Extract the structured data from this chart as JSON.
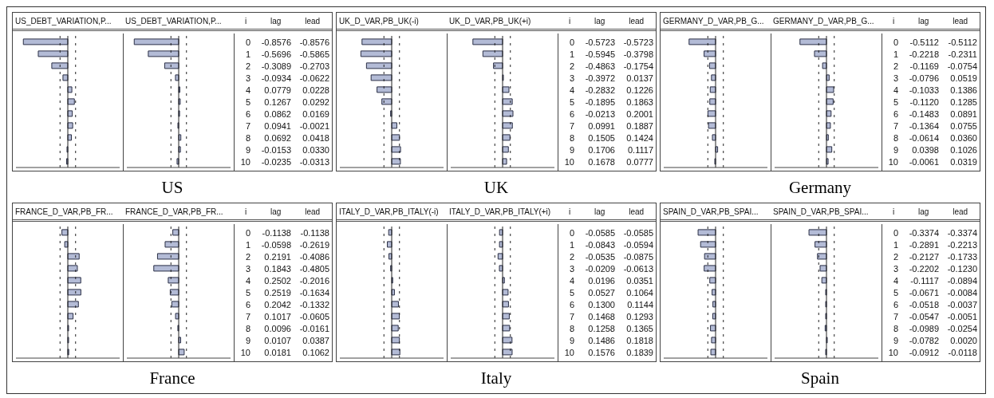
{
  "chart_data": [
    {
      "type": "bar",
      "orientation": "horizontal",
      "title": "US_DEBT_VARIATION,P...",
      "categories": [
        "0",
        "1",
        "2",
        "3",
        "4",
        "5",
        "6",
        "7",
        "8",
        "9",
        "10"
      ],
      "color": "#b3bbd6",
      "values": [
        -0.8576,
        -0.5696,
        -0.3089,
        -0.0934,
        0.0779,
        0.1267,
        0.0862,
        0.0941,
        0.0692,
        -0.0153,
        -0.0235
      ],
      "value_labels": [
        "-0.8576",
        "-0.5696",
        "-0.3089",
        "-0.0934",
        "0.0779",
        "0.1267",
        "0.0862",
        "0.0941",
        "0.0692",
        "-0.0153",
        "-0.0235"
      ],
      "annotations": [
        "lag"
      ],
      "xlim": [
        -1,
        1
      ],
      "ref_lines": [
        {
          "axis": "x",
          "value": -0.15,
          "line_style": "dashed"
        },
        {
          "axis": "x",
          "value": 0.15,
          "line_style": "dashed"
        },
        {
          "axis": "x",
          "value": 0,
          "line_style": "solid"
        }
      ],
      "tick_labels": false
    },
    {
      "type": "bar",
      "orientation": "horizontal",
      "title": "US_DEBT_VARIATION,P...",
      "categories": [
        "0",
        "1",
        "2",
        "3",
        "4",
        "5",
        "6",
        "7",
        "8",
        "9",
        "10"
      ],
      "color": "#b3bbd6",
      "values": [
        -0.8576,
        -0.5865,
        -0.2703,
        -0.0622,
        0.0228,
        0.0292,
        0.0169,
        -0.0021,
        0.0418,
        0.033,
        -0.0313
      ],
      "value_labels": [
        "-0.8576",
        "-0.5865",
        "-0.2703",
        "-0.0622",
        "0.0228",
        "0.0292",
        "0.0169",
        "-0.0021",
        "0.0418",
        "0.0330",
        "-0.0313"
      ],
      "annotations": [
        "i",
        "lead",
        "US"
      ],
      "xlim": [
        -1,
        1
      ],
      "ref_lines": [
        {
          "axis": "x",
          "value": -0.15,
          "line_style": "dashed"
        },
        {
          "axis": "x",
          "value": 0.15,
          "line_style": "dashed"
        },
        {
          "axis": "x",
          "value": 0,
          "line_style": "solid"
        }
      ],
      "tick_labels": false
    },
    {
      "type": "bar",
      "orientation": "horizontal",
      "title": "UK_D_VAR,PB_UK(-i)",
      "categories": [
        "0",
        "1",
        "2",
        "3",
        "4",
        "5",
        "6",
        "7",
        "8",
        "9",
        "10"
      ],
      "color": "#b3bbd6",
      "values": [
        -0.5723,
        -0.5945,
        -0.4863,
        -0.3972,
        -0.2832,
        -0.1895,
        -0.0213,
        0.0991,
        0.1505,
        0.1706,
        0.1678
      ],
      "value_labels": [
        "-0.5723",
        "-0.5945",
        "-0.4863",
        "-0.3972",
        "-0.2832",
        "-0.1895",
        "-0.0213",
        "0.0991",
        "0.1505",
        "0.1706",
        "0.1678"
      ],
      "annotations": [
        "lag"
      ],
      "xlim": [
        -1,
        1
      ],
      "ref_lines": [
        {
          "axis": "x",
          "value": -0.15,
          "line_style": "dashed"
        },
        {
          "axis": "x",
          "value": 0.15,
          "line_style": "dashed"
        },
        {
          "axis": "x",
          "value": 0,
          "line_style": "solid"
        }
      ],
      "tick_labels": false
    },
    {
      "type": "bar",
      "orientation": "horizontal",
      "title": "UK_D_VAR,PB_UK(+i)",
      "categories": [
        "0",
        "1",
        "2",
        "3",
        "4",
        "5",
        "6",
        "7",
        "8",
        "9",
        "10"
      ],
      "color": "#b3bbd6",
      "values": [
        -0.5723,
        -0.3798,
        -0.1754,
        0.0137,
        0.1226,
        0.1863,
        0.2001,
        0.1887,
        0.1424,
        0.1117,
        0.0777
      ],
      "value_labels": [
        "-0.5723",
        "-0.3798",
        "-0.1754",
        "0.0137",
        "0.1226",
        "0.1863",
        "0.2001",
        "0.1887",
        "0.1424",
        "0.1117",
        "0.0777"
      ],
      "annotations": [
        "i",
        "lead",
        "UK"
      ],
      "xlim": [
        -1,
        1
      ],
      "ref_lines": [
        {
          "axis": "x",
          "value": -0.15,
          "line_style": "dashed"
        },
        {
          "axis": "x",
          "value": 0.15,
          "line_style": "dashed"
        },
        {
          "axis": "x",
          "value": 0,
          "line_style": "solid"
        }
      ],
      "tick_labels": false
    },
    {
      "type": "bar",
      "orientation": "horizontal",
      "title": "GERMANY_D_VAR,PB_G...",
      "categories": [
        "0",
        "1",
        "2",
        "3",
        "4",
        "5",
        "6",
        "7",
        "8",
        "9",
        "10"
      ],
      "color": "#b3bbd6",
      "values": [
        -0.5112,
        -0.2218,
        -0.1169,
        -0.0796,
        -0.1033,
        -0.112,
        -0.1483,
        -0.1364,
        -0.0614,
        0.0398,
        -0.0061
      ],
      "value_labels": [
        "-0.5112",
        "-0.2218",
        "-0.1169",
        "-0.0796",
        "-0.1033",
        "-0.1120",
        "-0.1483",
        "-0.1364",
        "-0.0614",
        "0.0398",
        "-0.0061"
      ],
      "annotations": [
        "lag"
      ],
      "xlim": [
        -1,
        1
      ],
      "ref_lines": [
        {
          "axis": "x",
          "value": -0.15,
          "line_style": "dashed"
        },
        {
          "axis": "x",
          "value": 0.15,
          "line_style": "dashed"
        },
        {
          "axis": "x",
          "value": 0,
          "line_style": "solid"
        }
      ],
      "tick_labels": false
    },
    {
      "type": "bar",
      "orientation": "horizontal",
      "title": "GERMANY_D_VAR,PB_G...",
      "categories": [
        "0",
        "1",
        "2",
        "3",
        "4",
        "5",
        "6",
        "7",
        "8",
        "9",
        "10"
      ],
      "color": "#b3bbd6",
      "values": [
        -0.5112,
        -0.2311,
        -0.0754,
        0.0519,
        0.1386,
        0.1285,
        0.0891,
        0.0755,
        0.036,
        0.1026,
        0.0319
      ],
      "value_labels": [
        "-0.5112",
        "-0.2311",
        "-0.0754",
        "0.0519",
        "0.1386",
        "0.1285",
        "0.0891",
        "0.0755",
        "0.0360",
        "0.1026",
        "0.0319"
      ],
      "annotations": [
        "i",
        "lead",
        "Germany"
      ],
      "xlim": [
        -1,
        1
      ],
      "ref_lines": [
        {
          "axis": "x",
          "value": -0.15,
          "line_style": "dashed"
        },
        {
          "axis": "x",
          "value": 0.15,
          "line_style": "dashed"
        },
        {
          "axis": "x",
          "value": 0,
          "line_style": "solid"
        }
      ],
      "tick_labels": false
    },
    {
      "type": "bar",
      "orientation": "horizontal",
      "title": "FRANCE_D_VAR,PB_FR...",
      "categories": [
        "0",
        "1",
        "2",
        "3",
        "4",
        "5",
        "6",
        "7",
        "8",
        "9",
        "10"
      ],
      "color": "#b3bbd6",
      "values": [
        -0.1138,
        -0.0598,
        0.2191,
        0.1843,
        0.2502,
        0.2519,
        0.2042,
        0.1017,
        0.0096,
        0.0107,
        0.0181
      ],
      "value_labels": [
        "-0.1138",
        "-0.0598",
        "0.2191",
        "0.1843",
        "0.2502",
        "0.2519",
        "0.2042",
        "0.1017",
        "0.0096",
        "0.0107",
        "0.0181"
      ],
      "annotations": [
        "lag"
      ],
      "xlim": [
        -1,
        1
      ],
      "ref_lines": [
        {
          "axis": "x",
          "value": -0.15,
          "line_style": "dashed"
        },
        {
          "axis": "x",
          "value": 0.15,
          "line_style": "dashed"
        },
        {
          "axis": "x",
          "value": 0,
          "line_style": "solid"
        }
      ],
      "tick_labels": false
    },
    {
      "type": "bar",
      "orientation": "horizontal",
      "title": "FRANCE_D_VAR,PB_FR...",
      "categories": [
        "0",
        "1",
        "2",
        "3",
        "4",
        "5",
        "6",
        "7",
        "8",
        "9",
        "10"
      ],
      "color": "#b3bbd6",
      "values": [
        -0.1138,
        -0.2619,
        -0.4086,
        -0.4805,
        -0.2016,
        -0.1634,
        -0.1332,
        -0.0605,
        -0.0161,
        0.0387,
        0.1062
      ],
      "value_labels": [
        "-0.1138",
        "-0.2619",
        "-0.4086",
        "-0.4805",
        "-0.2016",
        "-0.1634",
        "-0.1332",
        "-0.0605",
        "-0.0161",
        "0.0387",
        "0.1062"
      ],
      "annotations": [
        "i",
        "lead",
        "France"
      ],
      "xlim": [
        -1,
        1
      ],
      "ref_lines": [
        {
          "axis": "x",
          "value": -0.15,
          "line_style": "dashed"
        },
        {
          "axis": "x",
          "value": 0.15,
          "line_style": "dashed"
        },
        {
          "axis": "x",
          "value": 0,
          "line_style": "solid"
        }
      ],
      "tick_labels": false
    },
    {
      "type": "bar",
      "orientation": "horizontal",
      "title": "ITALY_D_VAR,PB_ITALY(-i)",
      "categories": [
        "0",
        "1",
        "2",
        "3",
        "4",
        "5",
        "6",
        "7",
        "8",
        "9",
        "10"
      ],
      "color": "#b3bbd6",
      "values": [
        -0.0585,
        -0.0843,
        -0.0535,
        -0.0209,
        0.0196,
        0.0527,
        0.13,
        0.1468,
        0.1258,
        0.1486,
        0.1576
      ],
      "value_labels": [
        "-0.0585",
        "-0.0843",
        "-0.0535",
        "-0.0209",
        "0.0196",
        "0.0527",
        "0.1300",
        "0.1468",
        "0.1258",
        "0.1486",
        "0.1576"
      ],
      "annotations": [
        "lag"
      ],
      "xlim": [
        -1,
        1
      ],
      "ref_lines": [
        {
          "axis": "x",
          "value": -0.15,
          "line_style": "dashed"
        },
        {
          "axis": "x",
          "value": 0.15,
          "line_style": "dashed"
        },
        {
          "axis": "x",
          "value": 0,
          "line_style": "solid"
        }
      ],
      "tick_labels": false
    },
    {
      "type": "bar",
      "orientation": "horizontal",
      "title": "ITALY_D_VAR,PB_ITALY(+i)",
      "categories": [
        "0",
        "1",
        "2",
        "3",
        "4",
        "5",
        "6",
        "7",
        "8",
        "9",
        "10"
      ],
      "color": "#b3bbd6",
      "values": [
        -0.0585,
        -0.0594,
        -0.0875,
        -0.0613,
        0.0351,
        0.1064,
        0.1144,
        0.1293,
        0.1365,
        0.1818,
        0.1839
      ],
      "value_labels": [
        "-0.0585",
        "-0.0594",
        "-0.0875",
        "-0.0613",
        "0.0351",
        "0.1064",
        "0.1144",
        "0.1293",
        "0.1365",
        "0.1818",
        "0.1839"
      ],
      "annotations": [
        "i",
        "lead",
        "Italy"
      ],
      "xlim": [
        -1,
        1
      ],
      "ref_lines": [
        {
          "axis": "x",
          "value": -0.15,
          "line_style": "dashed"
        },
        {
          "axis": "x",
          "value": 0.15,
          "line_style": "dashed"
        },
        {
          "axis": "x",
          "value": 0,
          "line_style": "solid"
        }
      ],
      "tick_labels": false
    },
    {
      "type": "bar",
      "orientation": "horizontal",
      "title": "SPAIN_D_VAR,PB_SPAI...",
      "categories": [
        "0",
        "1",
        "2",
        "3",
        "4",
        "5",
        "6",
        "7",
        "8",
        "9",
        "10"
      ],
      "color": "#b3bbd6",
      "values": [
        -0.3374,
        -0.2891,
        -0.2127,
        -0.2202,
        -0.1117,
        -0.0671,
        -0.0518,
        -0.0547,
        -0.0989,
        -0.0782,
        -0.0912
      ],
      "value_labels": [
        "-0.3374",
        "-0.2891",
        "-0.2127",
        "-0.2202",
        "-0.1117",
        "-0.0671",
        "-0.0518",
        "-0.0547",
        "-0.0989",
        "-0.0782",
        "-0.0912"
      ],
      "annotations": [
        "lag"
      ],
      "xlim": [
        -1,
        1
      ],
      "ref_lines": [
        {
          "axis": "x",
          "value": -0.15,
          "line_style": "dashed"
        },
        {
          "axis": "x",
          "value": 0.15,
          "line_style": "dashed"
        },
        {
          "axis": "x",
          "value": 0,
          "line_style": "solid"
        }
      ],
      "tick_labels": false
    },
    {
      "type": "bar",
      "orientation": "horizontal",
      "title": "SPAIN_D_VAR,PB_SPAI...",
      "categories": [
        "0",
        "1",
        "2",
        "3",
        "4",
        "5",
        "6",
        "7",
        "8",
        "9",
        "10"
      ],
      "color": "#b3bbd6",
      "values": [
        -0.3374,
        -0.2213,
        -0.1733,
        -0.123,
        -0.0894,
        -0.0084,
        -0.0037,
        -0.0051,
        -0.0254,
        0.002,
        -0.0118
      ],
      "value_labels": [
        "-0.3374",
        "-0.2213",
        "-0.1733",
        "-0.1230",
        "-0.0894",
        "-0.0084",
        "-0.0037",
        "-0.0051",
        "-0.0254",
        "0.0020",
        "-0.0118"
      ],
      "annotations": [
        "i",
        "lead",
        "Spain"
      ],
      "xlim": [
        -1,
        1
      ],
      "ref_lines": [
        {
          "axis": "x",
          "value": -0.15,
          "line_style": "dashed"
        },
        {
          "axis": "x",
          "value": 0.15,
          "line_style": "dashed"
        },
        {
          "axis": "x",
          "value": 0,
          "line_style": "solid"
        }
      ],
      "tick_labels": false
    }
  ]
}
